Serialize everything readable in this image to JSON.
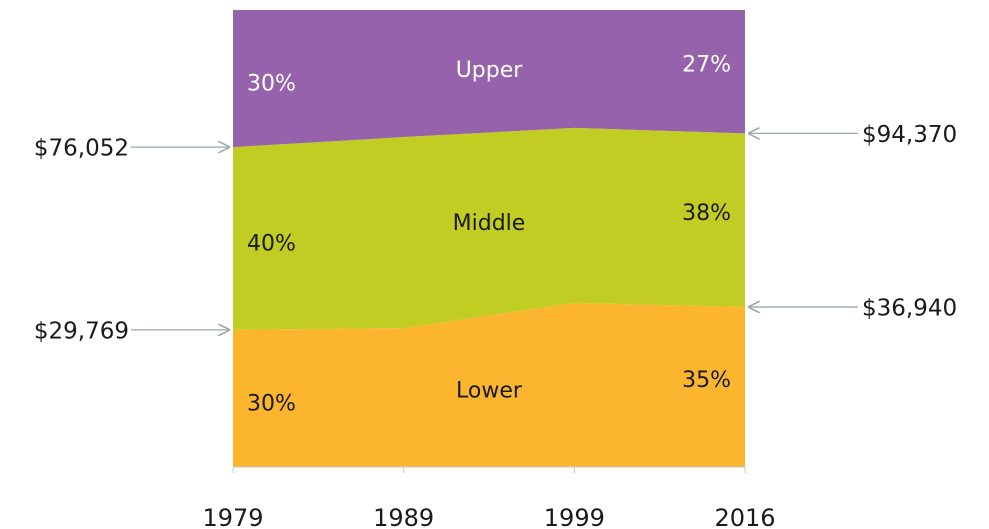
{
  "chart_data": {
    "type": "stacked_area_percent",
    "categories": [
      "1979",
      "1989",
      "1999",
      "2016"
    ],
    "ylim": [
      0,
      100
    ],
    "series": [
      {
        "name": "Lower",
        "color": "#fbb52f",
        "values": [
          30,
          30.4,
          35.9,
          35
        ],
        "value_labels": [
          "30%",
          null,
          null,
          "35%"
        ]
      },
      {
        "name": "Middle",
        "color": "#c2cd23",
        "values": [
          40,
          41.8,
          38.3,
          38
        ],
        "value_labels": [
          "40%",
          null,
          null,
          "38%"
        ]
      },
      {
        "name": "Upper",
        "color": "#9562ab",
        "values": [
          30,
          27.8,
          25.8,
          27
        ],
        "value_labels": [
          "30%",
          null,
          null,
          "27%"
        ]
      }
    ],
    "annotations": [
      {
        "label": "$76,052",
        "category": "1979",
        "series": "Middle"
      },
      {
        "label": "$29,769",
        "category": "1979",
        "series": "Lower"
      },
      {
        "label": "$94,370",
        "category": "2016",
        "series": "Middle"
      },
      {
        "label": "$36,940",
        "category": "2016",
        "series": "Lower"
      }
    ]
  }
}
